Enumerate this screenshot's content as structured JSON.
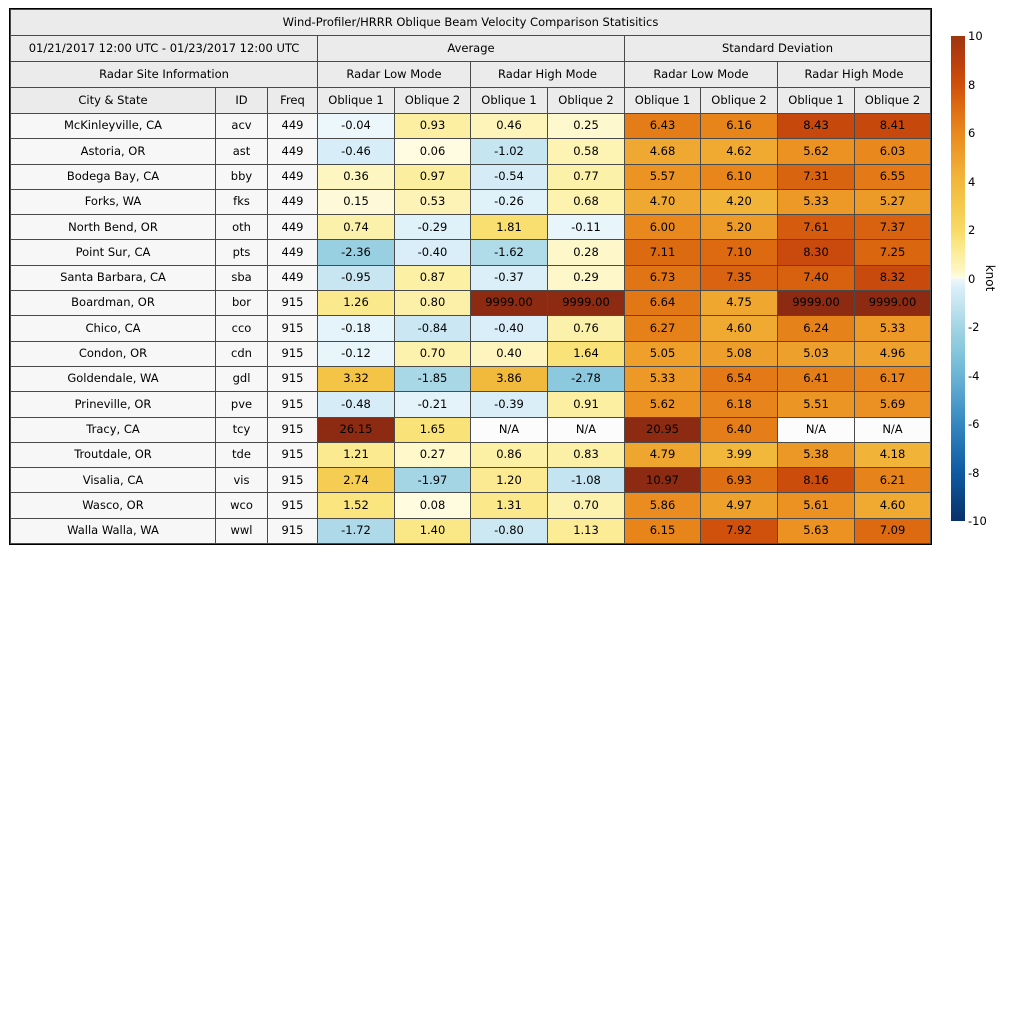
{
  "title": "Wind-Profiler/HRRR Oblique Beam Velocity Comparison Statisitics",
  "header": {
    "date_range": "01/21/2017 12:00 UTC - 01/23/2017 12:00 UTC",
    "group_average": "Average",
    "group_std": "Standard Deviation",
    "site_info": "Radar Site Information",
    "modes": [
      "Radar Low Mode",
      "Radar High Mode",
      "Radar Low Mode",
      "Radar High Mode"
    ],
    "columns": [
      "City & State",
      "ID",
      "Freq",
      "Oblique 1",
      "Oblique 2",
      "Oblique 1",
      "Oblique 2",
      "Oblique 1",
      "Oblique 2",
      "Oblique 1",
      "Oblique 2"
    ]
  },
  "chart_data": {
    "type": "heatmap",
    "title": "Wind-Profiler/HRRR Oblique Beam Velocity Comparison Statisitics",
    "period": "01/21/2017 12:00 UTC - 01/23/2017 12:00 UTC",
    "value_columns": [
      "Avg Low Oblique 1",
      "Avg Low Oblique 2",
      "Avg High Oblique 1",
      "Avg High Oblique 2",
      "Std Low Oblique 1",
      "Std Low Oblique 2",
      "Std High Oblique 1",
      "Std High Oblique 2"
    ],
    "unit": "knot",
    "color_range": [
      -10,
      10
    ],
    "rows": [
      {
        "city": "McKinleyville, CA",
        "id": "acv",
        "freq": "449",
        "v": [
          "-0.04",
          "0.93",
          "0.46",
          "0.25",
          "6.43",
          "6.16",
          "8.43",
          "8.41"
        ]
      },
      {
        "city": "Astoria, OR",
        "id": "ast",
        "freq": "449",
        "v": [
          "-0.46",
          "0.06",
          "-1.02",
          "0.58",
          "4.68",
          "4.62",
          "5.62",
          "6.03"
        ]
      },
      {
        "city": "Bodega Bay, CA",
        "id": "bby",
        "freq": "449",
        "v": [
          "0.36",
          "0.97",
          "-0.54",
          "0.77",
          "5.57",
          "6.10",
          "7.31",
          "6.55"
        ]
      },
      {
        "city": "Forks, WA",
        "id": "fks",
        "freq": "449",
        "v": [
          "0.15",
          "0.53",
          "-0.26",
          "0.68",
          "4.70",
          "4.20",
          "5.33",
          "5.27"
        ]
      },
      {
        "city": "North Bend, OR",
        "id": "oth",
        "freq": "449",
        "v": [
          "0.74",
          "-0.29",
          "1.81",
          "-0.11",
          "6.00",
          "5.20",
          "7.61",
          "7.37"
        ]
      },
      {
        "city": "Point Sur, CA",
        "id": "pts",
        "freq": "449",
        "v": [
          "-2.36",
          "-0.40",
          "-1.62",
          "0.28",
          "7.11",
          "7.10",
          "8.30",
          "7.25"
        ]
      },
      {
        "city": "Santa Barbara, CA",
        "id": "sba",
        "freq": "449",
        "v": [
          "-0.95",
          "0.87",
          "-0.37",
          "0.29",
          "6.73",
          "7.35",
          "7.40",
          "8.32"
        ]
      },
      {
        "city": "Boardman, OR",
        "id": "bor",
        "freq": "915",
        "v": [
          "1.26",
          "0.80",
          "9999.00",
          "9999.00",
          "6.64",
          "4.75",
          "9999.00",
          "9999.00"
        ]
      },
      {
        "city": "Chico, CA",
        "id": "cco",
        "freq": "915",
        "v": [
          "-0.18",
          "-0.84",
          "-0.40",
          "0.76",
          "6.27",
          "4.60",
          "6.24",
          "5.33"
        ]
      },
      {
        "city": "Condon, OR",
        "id": "cdn",
        "freq": "915",
        "v": [
          "-0.12",
          "0.70",
          "0.40",
          "1.64",
          "5.05",
          "5.08",
          "5.03",
          "4.96"
        ]
      },
      {
        "city": "Goldendale, WA",
        "id": "gdl",
        "freq": "915",
        "v": [
          "3.32",
          "-1.85",
          "3.86",
          "-2.78",
          "5.33",
          "6.54",
          "6.41",
          "6.17"
        ]
      },
      {
        "city": "Prineville, OR",
        "id": "pve",
        "freq": "915",
        "v": [
          "-0.48",
          "-0.21",
          "-0.39",
          "0.91",
          "5.62",
          "6.18",
          "5.51",
          "5.69"
        ]
      },
      {
        "city": "Tracy, CA",
        "id": "tcy",
        "freq": "915",
        "v": [
          "26.15",
          "1.65",
          "N/A",
          "N/A",
          "20.95",
          "6.40",
          "N/A",
          "N/A"
        ]
      },
      {
        "city": "Troutdale, OR",
        "id": "tde",
        "freq": "915",
        "v": [
          "1.21",
          "0.27",
          "0.86",
          "0.83",
          "4.79",
          "3.99",
          "5.38",
          "4.18"
        ]
      },
      {
        "city": "Visalia, CA",
        "id": "vis",
        "freq": "915",
        "v": [
          "2.74",
          "-1.97",
          "1.20",
          "-1.08",
          "10.97",
          "6.93",
          "8.16",
          "6.21"
        ]
      },
      {
        "city": "Wasco, OR",
        "id": "wco",
        "freq": "915",
        "v": [
          "1.52",
          "0.08",
          "1.31",
          "0.70",
          "5.86",
          "4.97",
          "5.61",
          "4.60"
        ]
      },
      {
        "city": "Walla Walla, WA",
        "id": "wwl",
        "freq": "915",
        "v": [
          "-1.72",
          "1.40",
          "-0.80",
          "1.13",
          "6.15",
          "7.92",
          "5.63",
          "7.09"
        ]
      }
    ]
  },
  "colorbar": {
    "label": "knot",
    "min": -10,
    "max": 10,
    "ticks": [
      "10",
      "8",
      "6",
      "4",
      "2",
      "0",
      "-2",
      "-4",
      "-6",
      "-8",
      "-10"
    ],
    "tick_values": [
      10,
      8,
      6,
      4,
      2,
      0,
      -2,
      -4,
      -6,
      -8,
      -10
    ],
    "stops": [
      [
        -10,
        "#08306b"
      ],
      [
        -8,
        "#0f5aa3"
      ],
      [
        -6,
        "#3487c0"
      ],
      [
        -4,
        "#6bb4d6"
      ],
      [
        -3,
        "#86c6dc"
      ],
      [
        -2,
        "#a3d5e4"
      ],
      [
        -1,
        "#c6e5f1"
      ],
      [
        -0.4,
        "#d9eef8"
      ],
      [
        0,
        "#eef8fb"
      ],
      [
        0.01,
        "#fffde8"
      ],
      [
        0.4,
        "#fdf5bd"
      ],
      [
        1,
        "#fcee9d"
      ],
      [
        1.5,
        "#fae57f"
      ],
      [
        2,
        "#f8da67"
      ],
      [
        3,
        "#f5c94c"
      ],
      [
        4,
        "#f2b83b"
      ],
      [
        5,
        "#eea12c"
      ],
      [
        6,
        "#e9891d"
      ],
      [
        7,
        "#de6d12"
      ],
      [
        8,
        "#cf4f0b"
      ],
      [
        9,
        "#ba3e0d"
      ],
      [
        10,
        "#9d360f"
      ]
    ],
    "over_color": "#8d2a12",
    "na_color": "#fcfcfc"
  }
}
